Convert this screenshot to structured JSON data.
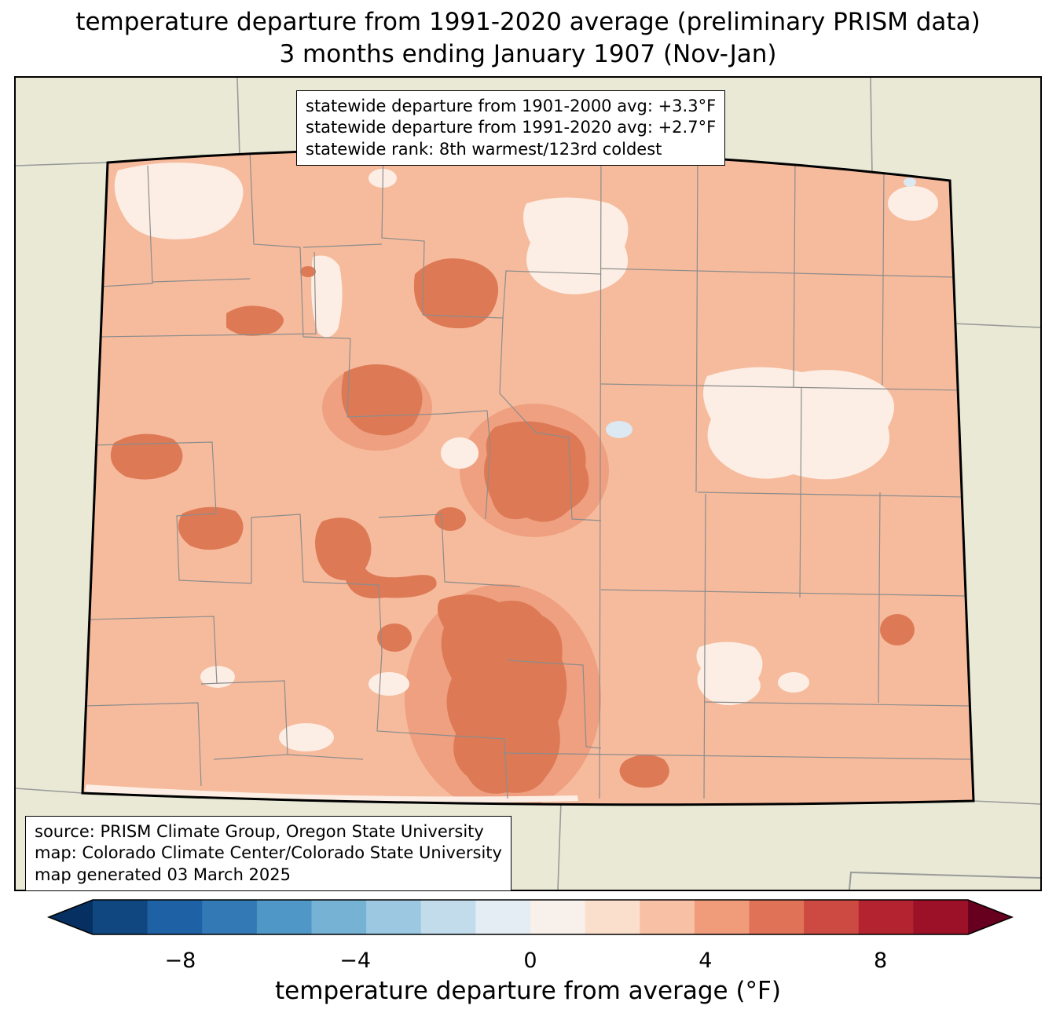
{
  "title": {
    "line1": "temperature departure from 1991-2020 average (preliminary PRISM data)",
    "line2": "3 months ending January 1907 (Nov-Jan)"
  },
  "stats_box": {
    "line1": "statewide departure from 1901-2000 avg: +3.3°F",
    "line2": "statewide departure from 1991-2020 avg: +2.7°F",
    "line3": "statewide rank: 8th warmest/123rd coldest"
  },
  "source_box": {
    "line1": "source: PRISM Climate Group, Oregon State University",
    "line2": "map: Colorado Climate Center/Colorado State University",
    "line3": "map generated 03 March 2025"
  },
  "map": {
    "region_name": "Colorado",
    "colors": {
      "outside": "#e9e9d6",
      "state_fill": "#f6bb9d",
      "anomaly_high": "#dd7a55",
      "anomaly_mid": "#efa080",
      "anomaly_low": "#fceee4",
      "anomaly_slight_negative": "#dce8f2",
      "county_border": "#8c8c8c",
      "neighbor_border": "#9a9a9a",
      "state_border": "#000000"
    }
  },
  "colorbar": {
    "label": "temperature departure from average (°F)",
    "unit": "°F",
    "range": [
      -10,
      10
    ],
    "ticks": [
      {
        "label": "−8",
        "value": -8,
        "pos": 0.1
      },
      {
        "label": "−4",
        "value": -4,
        "pos": 0.3
      },
      {
        "label": "0",
        "value": 0,
        "pos": 0.5
      },
      {
        "label": "4",
        "value": 4,
        "pos": 0.7
      },
      {
        "label": "8",
        "value": 8,
        "pos": 0.9
      }
    ],
    "left_arrow_color": "#053061",
    "right_arrow_color": "#67001f",
    "segments": [
      "#114781",
      "#1e61a5",
      "#3379b5",
      "#4f97c6",
      "#75b2d4",
      "#9cc9e1",
      "#c3dcec",
      "#e3edf3",
      "#f8f0ea",
      "#fbdfcd",
      "#f8c0a4",
      "#f09c7b",
      "#e07258",
      "#cd4a42",
      "#b42330",
      "#9c1127"
    ]
  },
  "chart_data": {
    "type": "heatmap",
    "title": "temperature departure from 1991-2020 average (preliminary PRISM data) — 3 months ending January 1907 (Nov-Jan)",
    "region": "Colorado",
    "statewide_departure_from_1901_2000_avg_F": 3.3,
    "statewide_departure_from_1991_2020_avg_F": 2.7,
    "statewide_rank": "8th warmest/123rd coldest",
    "colorbar_label": "temperature departure from average (°F)",
    "colorbar_ticks": [
      -8,
      -4,
      0,
      4,
      8
    ],
    "colorbar_range": [
      -10,
      10
    ]
  }
}
